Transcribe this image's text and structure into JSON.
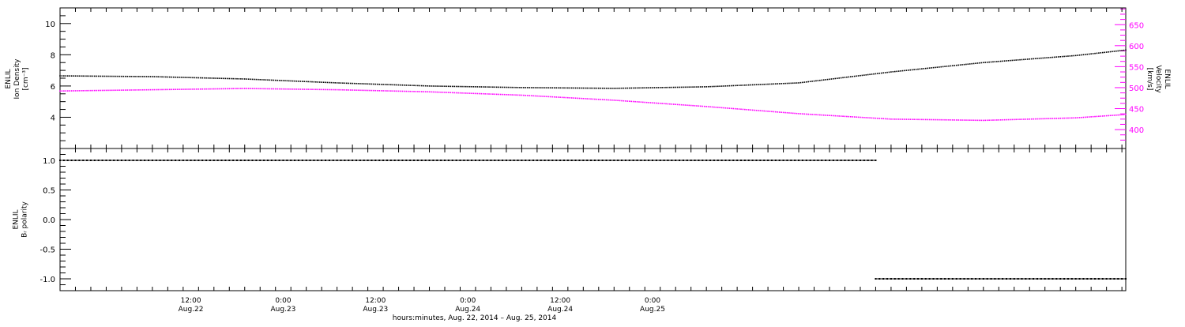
{
  "chart_data": [
    {
      "type": "line",
      "panel": "top",
      "ylabel_left": [
        "ENLIL",
        "Ion Density",
        "[cm⁻³]"
      ],
      "ylabel_right": [
        "ENLIL",
        "Velocity",
        "[km/s]"
      ],
      "ylim_left": [
        2,
        11
      ],
      "ylim_right": [
        355,
        690
      ],
      "yticks_left": [
        "4",
        "6",
        "8",
        "10"
      ],
      "yticks_right": [
        "400",
        "450",
        "500",
        "550",
        "600",
        "650"
      ],
      "colors": {
        "left": "#000000",
        "right": "#ff00ff"
      },
      "series": [
        {
          "axis": "left",
          "x_hours": [
            0,
            12,
            24,
            36,
            48,
            60,
            72,
            84,
            96,
            108,
            120,
            132,
            138.5
          ],
          "values": [
            6.65,
            6.6,
            6.45,
            6.2,
            6.0,
            5.9,
            5.85,
            5.95,
            6.2,
            6.9,
            7.5,
            7.95,
            8.3
          ]
        },
        {
          "axis": "right",
          "x_hours": [
            0,
            12,
            24,
            36,
            48,
            60,
            72,
            84,
            96,
            108,
            120,
            132,
            138.5
          ],
          "values": [
            492,
            495,
            498,
            495,
            490,
            482,
            470,
            455,
            438,
            425,
            422,
            428,
            436
          ]
        }
      ]
    },
    {
      "type": "scatter",
      "panel": "bottom",
      "ylabel": [
        "ENLIL",
        "Bᵣ polarity"
      ],
      "ylim": [
        -1.2,
        1.2
      ],
      "yticks": [
        "-1.0",
        "-0.5",
        "0.0",
        "0.5",
        "1.0"
      ],
      "color": "#000000",
      "series": [
        {
          "x_range_hours": [
            0,
            106
          ],
          "value": 1.0
        },
        {
          "x_range_hours": [
            106,
            138.5
          ],
          "value": -1.0
        }
      ]
    }
  ],
  "x_axis": {
    "xlim_hours": [
      0,
      138.5
    ],
    "ticks": [
      {
        "hour": 17,
        "line1": "12:00",
        "line2": "Aug.22"
      },
      {
        "hour": 29,
        "line1": "0:00",
        "line2": "Aug.23"
      },
      {
        "hour": 41,
        "line1": "12:00",
        "line2": "Aug.23"
      },
      {
        "hour": 53,
        "line1": "0:00",
        "line2": "Aug.24"
      },
      {
        "hour": 65,
        "line1": "12:00",
        "line2": "Aug.24"
      },
      {
        "hour": 77,
        "line1": "0:00",
        "line2": "Aug.25"
      }
    ],
    "xlabel": "hours:minutes, Aug. 22, 2014 – Aug. 25, 2014"
  }
}
